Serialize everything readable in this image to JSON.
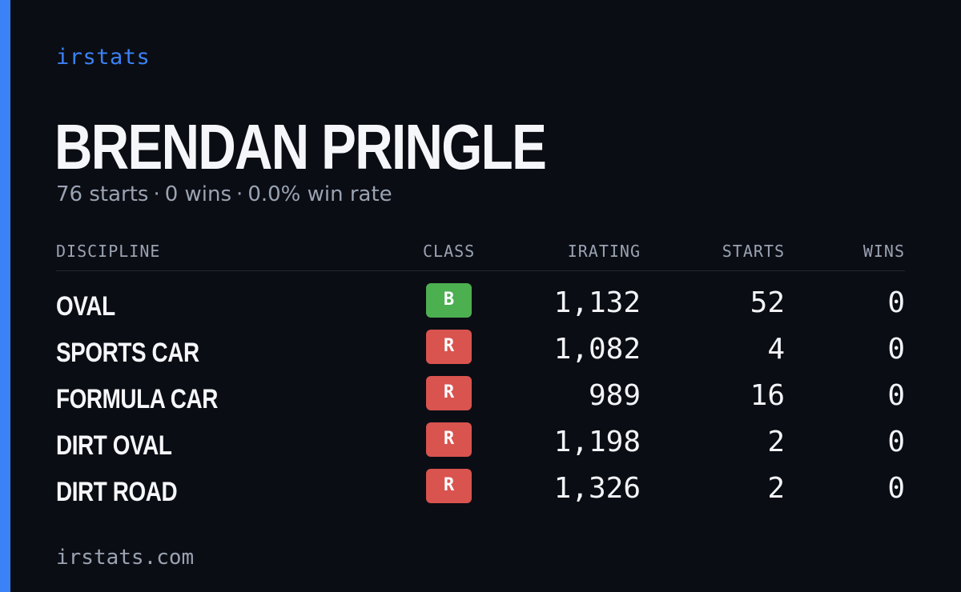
{
  "brand": "irstats",
  "driver_name": "BRENDAN PRINGLE",
  "summary": {
    "starts": "76 starts",
    "wins": "0 wins",
    "win_rate": "0.0% win rate",
    "separator": "·"
  },
  "table": {
    "headers": {
      "discipline": "DISCIPLINE",
      "class": "CLASS",
      "irating": "IRATING",
      "starts": "STARTS",
      "wins": "WINS"
    },
    "rows": [
      {
        "discipline": "OVAL",
        "class": "B",
        "class_color": "#4caf50",
        "irating": "1,132",
        "starts": "52",
        "wins": "0"
      },
      {
        "discipline": "SPORTS CAR",
        "class": "R",
        "class_color": "#d9534f",
        "irating": "1,082",
        "starts": "4",
        "wins": "0"
      },
      {
        "discipline": "FORMULA CAR",
        "class": "R",
        "class_color": "#d9534f",
        "irating": "989",
        "starts": "16",
        "wins": "0"
      },
      {
        "discipline": "DIRT OVAL",
        "class": "R",
        "class_color": "#d9534f",
        "irating": "1,198",
        "starts": "2",
        "wins": "0"
      },
      {
        "discipline": "DIRT ROAD",
        "class": "R",
        "class_color": "#d9534f",
        "irating": "1,326",
        "starts": "2",
        "wins": "0"
      }
    ]
  },
  "footer": "irstats.com",
  "colors": {
    "background": "#0b0d14",
    "accent": "#3b82f6",
    "muted_text": "#9aa3b2"
  }
}
